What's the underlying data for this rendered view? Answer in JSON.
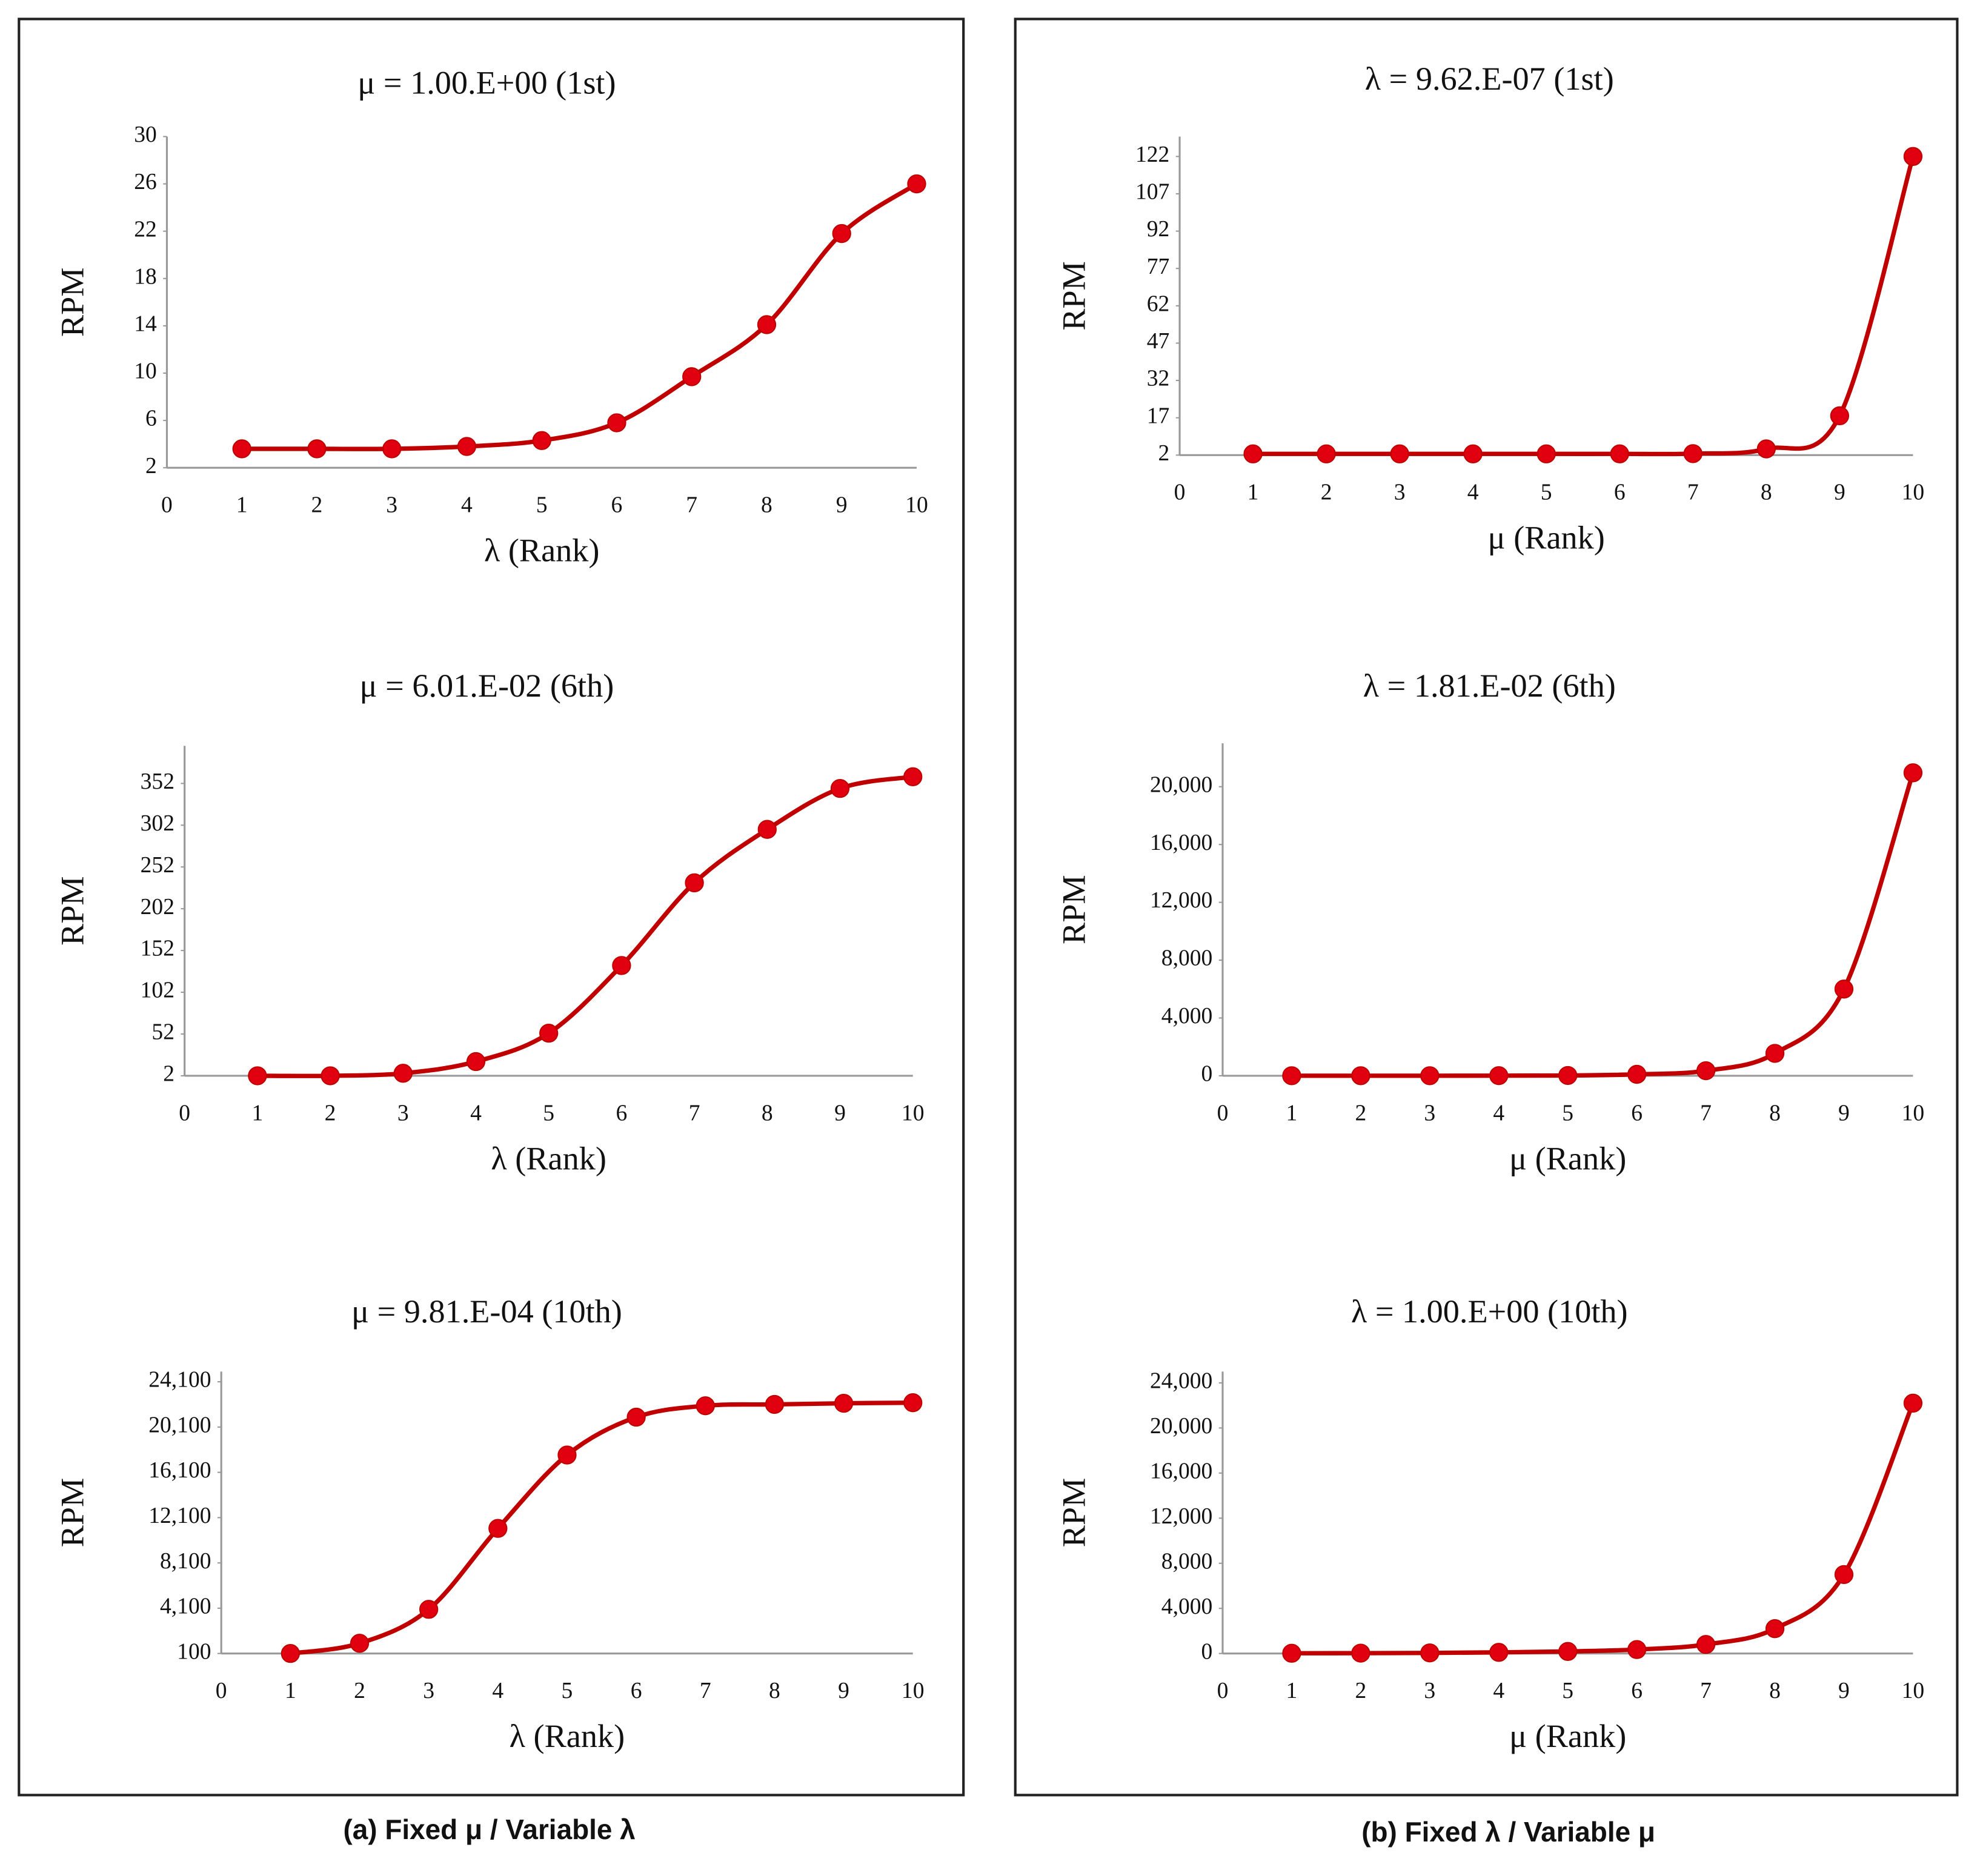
{
  "chart_data": [
    {
      "type": "line",
      "title": "μ = 1.00.E+00 (1st)",
      "y_label": "RPM",
      "x_label": "λ (Rank)",
      "x": [
        1,
        2,
        3,
        4,
        5,
        6,
        7,
        8,
        9,
        10
      ],
      "xlim": [
        0,
        10
      ],
      "xticks": [
        0,
        1,
        2,
        3,
        4,
        5,
        6,
        7,
        8,
        9,
        10
      ],
      "ylim": [
        2,
        30
      ],
      "yticks": [
        2,
        6,
        10,
        14,
        18,
        22,
        26,
        30
      ],
      "series": [
        {
          "color": "#c00000",
          "values": [
            3.6,
            3.6,
            3.6,
            3.8,
            4.3,
            5.8,
            9.7,
            14.1,
            21.8,
            26.0
          ]
        }
      ]
    },
    {
      "type": "line",
      "title": "μ = 6.01.E-02 (6th)",
      "y_label": "RPM",
      "x_label": "λ (Rank)",
      "x": [
        1,
        2,
        3,
        4,
        5,
        6,
        7,
        8,
        9,
        10
      ],
      "xlim": [
        0,
        10
      ],
      "xticks": [
        0,
        1,
        2,
        3,
        4,
        5,
        6,
        7,
        8,
        9,
        10
      ],
      "ylim": [
        2,
        397
      ],
      "yticks": [
        2,
        52,
        102,
        152,
        202,
        252,
        302,
        352
      ],
      "series": [
        {
          "color": "#c00000",
          "values": [
            2,
            2,
            5,
            19,
            53,
            134,
            233,
            297,
            346,
            360
          ]
        }
      ]
    },
    {
      "type": "line",
      "title": "μ = 9.81.E-04 (10th)",
      "y_label": "RPM",
      "x_label": "λ (Rank)",
      "x": [
        1,
        2,
        3,
        4,
        5,
        6,
        7,
        8,
        9,
        10
      ],
      "xlim": [
        0,
        10
      ],
      "xticks": [
        0,
        1,
        2,
        3,
        4,
        5,
        6,
        7,
        8,
        9,
        10
      ],
      "ylim": [
        100,
        25000
      ],
      "yticks": [
        100,
        {
          "value": 4100,
          "label": "4,100"
        },
        {
          "value": 8100,
          "label": "8,100"
        },
        {
          "value": 12100,
          "label": "12,100"
        },
        {
          "value": 16100,
          "label": "16,100"
        },
        {
          "value": 20100,
          "label": "20,100"
        },
        {
          "value": 24100,
          "label": "24,100"
        }
      ],
      "series": [
        {
          "color": "#c00000",
          "values": [
            100,
            1000,
            4000,
            11150,
            17630,
            20975,
            21980,
            22100,
            22200,
            22250
          ]
        }
      ]
    },
    {
      "type": "line",
      "title": "λ = 9.62.E-07 (1st)",
      "y_label": "RPM",
      "x_label": "μ (Rank)",
      "x": [
        1,
        2,
        3,
        4,
        5,
        6,
        7,
        8,
        9,
        10
      ],
      "xlim": [
        0,
        10
      ],
      "xticks": [
        0,
        1,
        2,
        3,
        4,
        5,
        6,
        7,
        8,
        9,
        10
      ],
      "ylim": [
        2,
        130
      ],
      "yticks": [
        2,
        17,
        32,
        47,
        62,
        77,
        92,
        107,
        122
      ],
      "series": [
        {
          "color": "#c00000",
          "values": [
            2.5,
            2.5,
            2.5,
            2.5,
            2.5,
            2.5,
            2.6,
            4.5,
            17.8,
            122
          ]
        }
      ]
    },
    {
      "type": "line",
      "title": "λ = 1.81.E-02 (6th)",
      "y_label": "RPM",
      "x_label": "μ (Rank)",
      "x": [
        1,
        2,
        3,
        4,
        5,
        6,
        7,
        8,
        9,
        10
      ],
      "xlim": [
        0,
        10
      ],
      "xticks": [
        0,
        1,
        2,
        3,
        4,
        5,
        6,
        7,
        8,
        9,
        10
      ],
      "ylim": [
        0,
        23000
      ],
      "yticks": [
        0,
        {
          "value": 4000,
          "label": "4,000"
        },
        {
          "value": 8000,
          "label": "8,000"
        },
        {
          "value": 12000,
          "label": "12,000"
        },
        {
          "value": 16000,
          "label": "16,000"
        },
        {
          "value": 20000,
          "label": "20,000"
        }
      ],
      "series": [
        {
          "color": "#c00000",
          "values": [
            5,
            5,
            5,
            10,
            20,
            100,
            350,
            1550,
            6000,
            20960
          ]
        }
      ]
    },
    {
      "type": "line",
      "title": "λ = 1.00.E+00 (10th)",
      "y_label": "RPM",
      "x_label": "μ (Rank)",
      "x": [
        1,
        2,
        3,
        4,
        5,
        6,
        7,
        8,
        9,
        10
      ],
      "xlim": [
        0,
        10
      ],
      "xticks": [
        0,
        1,
        2,
        3,
        4,
        5,
        6,
        7,
        8,
        9,
        10
      ],
      "ylim": [
        0,
        25000
      ],
      "yticks": [
        0,
        {
          "value": 4000,
          "label": "4,000"
        },
        {
          "value": 8000,
          "label": "8,000"
        },
        {
          "value": 12000,
          "label": "12,000"
        },
        {
          "value": 16000,
          "label": "16,000"
        },
        {
          "value": 20000,
          "label": "20,000"
        },
        {
          "value": 24000,
          "label": "24,000"
        }
      ],
      "series": [
        {
          "color": "#c00000",
          "values": [
            20,
            30,
            50,
            100,
            180,
            350,
            800,
            2200,
            7000,
            22200
          ]
        }
      ]
    }
  ],
  "panel_captions": [
    "(a) Fixed μ / Variable λ",
    "(b) Fixed λ / Variable μ"
  ]
}
